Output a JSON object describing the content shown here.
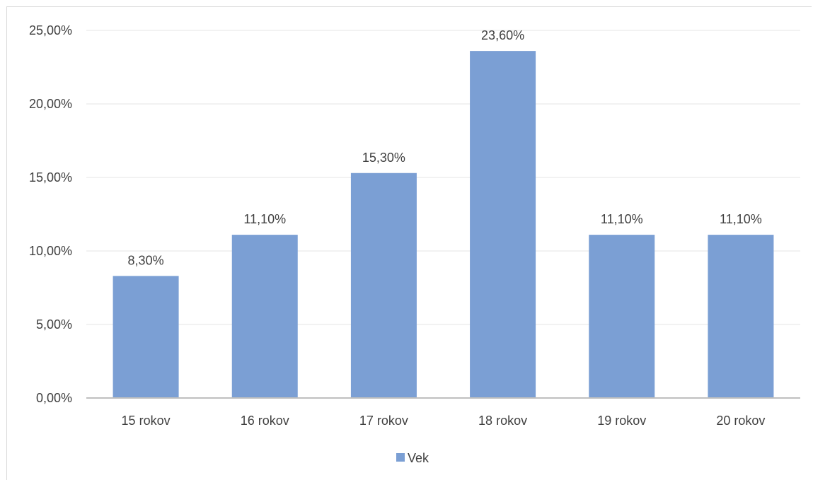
{
  "chart_data": {
    "type": "bar",
    "title": "",
    "xlabel": "",
    "ylabel": "",
    "categories": [
      "15 rokov",
      "16 rokov",
      "17 rokov",
      "18 rokov",
      "19 rokov",
      "20 rokov"
    ],
    "series": [
      {
        "name": "Vek",
        "values": [
          8.3,
          11.1,
          15.3,
          23.6,
          11.1,
          11.1
        ],
        "labels": [
          "8,30%",
          "11,10%",
          "15,30%",
          "23,60%",
          "11,10%",
          "11,10%"
        ]
      }
    ],
    "ylim": [
      0,
      25
    ],
    "yticks": [
      0,
      5,
      10,
      15,
      20,
      25
    ],
    "ytick_labels": [
      "0,00%",
      "5,00%",
      "10,00%",
      "15,00%",
      "20,00%",
      "25,00%"
    ],
    "grid": true,
    "legend_position": "bottom",
    "colors": {
      "bar": "#7b9fd4",
      "grid": "#e6e6e6",
      "axis": "#bfbfbf",
      "text": "#404040"
    }
  }
}
